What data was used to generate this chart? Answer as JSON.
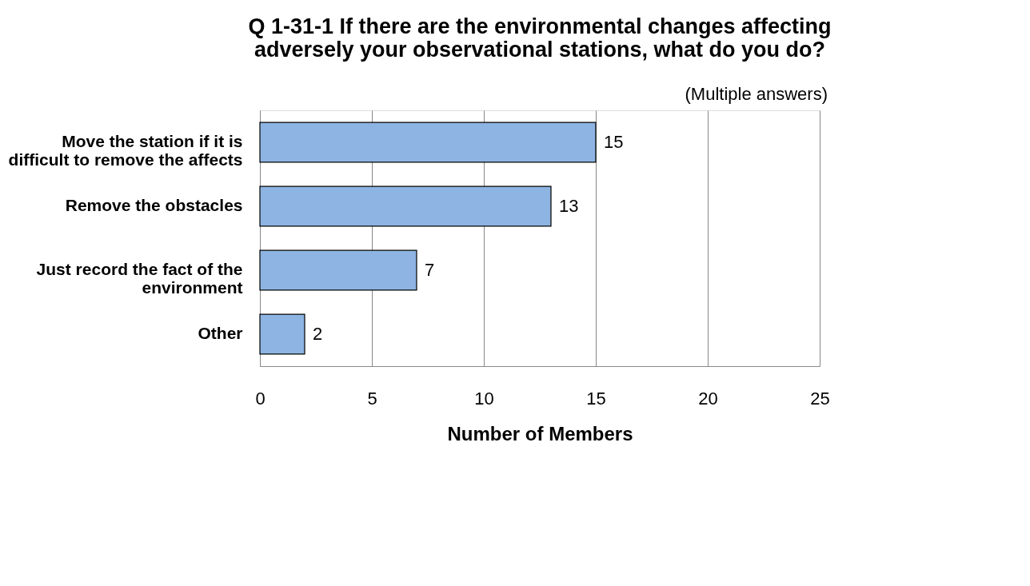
{
  "chart_data": {
    "type": "bar",
    "orientation": "horizontal",
    "title": "Q 1-31-1 If there are the environmental changes affecting adversely your observational stations, what do you do?",
    "categories": [
      "Move the station if it is difficult to remove the affects",
      "Remove the obstacles",
      "Just record the fact of the environment",
      "Other"
    ],
    "values": [
      15,
      13,
      7,
      2
    ],
    "color": "#8db4e2",
    "xlabel": "Number of Members",
    "xlim": [
      0,
      25
    ],
    "xticks": [
      0,
      5,
      10,
      15,
      20,
      25
    ],
    "grid": "x",
    "data_labels": true,
    "annotations": [
      "(Multiple answers)"
    ]
  }
}
